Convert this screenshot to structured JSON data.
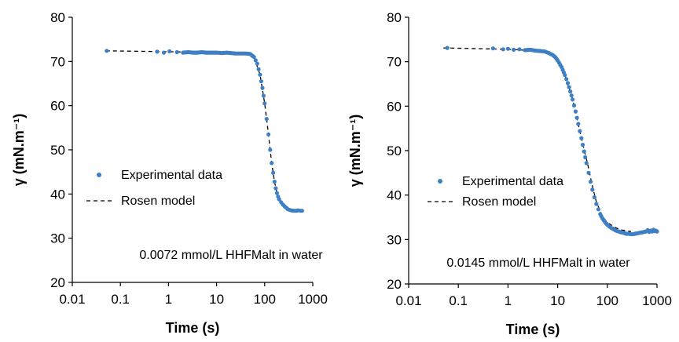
{
  "colors": {
    "data": "#3f7fc4",
    "model": "#000000",
    "axis": "#000000"
  },
  "chart_data": [
    {
      "type": "scatter",
      "x_scale": "log",
      "xlabel": "Time (s)",
      "ylabel": "γ (mN.m⁻¹)",
      "xlim": [
        0.01,
        1000
      ],
      "ylim": [
        20,
        80
      ],
      "x_ticks": [
        "0.01",
        "0.1",
        "1",
        "10",
        "100",
        "1000"
      ],
      "y_ticks": [
        "20",
        "30",
        "40",
        "50",
        "60",
        "70",
        "80"
      ],
      "grid": false,
      "legend_placement": "left-center",
      "legend": {
        "experimental": "Experimental data",
        "model": "Rosen model"
      },
      "annotation": "0.0072 mmol/L  HHFMalt  in water",
      "series": [
        {
          "name": "Experimental data",
          "kind": "markers",
          "x": [
            0.052,
            0.58,
            0.8,
            1.05,
            1.5,
            2.0,
            2.6,
            3.2,
            4.0,
            5.0,
            6.0,
            8.0,
            10,
            13,
            16,
            20,
            25,
            30,
            40,
            50,
            60,
            70,
            80,
            90,
            100,
            110,
            120,
            130,
            140,
            150,
            160,
            170,
            180,
            190,
            200,
            220,
            240,
            260,
            280,
            300,
            330,
            360,
            400,
            450,
            500,
            550,
            600
          ],
          "y": [
            72.4,
            72.2,
            72.0,
            72.3,
            72.1,
            72.0,
            72.1,
            72.0,
            72.0,
            72.1,
            72.0,
            72.0,
            72.0,
            71.9,
            72.0,
            71.9,
            71.8,
            71.8,
            71.8,
            71.7,
            71.0,
            69.5,
            67.0,
            64.0,
            60.5,
            57.0,
            53.5,
            50.0,
            47.0,
            44.8,
            42.8,
            41.3,
            40.2,
            39.4,
            38.8,
            38.1,
            37.6,
            37.2,
            36.9,
            36.6,
            36.4,
            36.3,
            36.2,
            36.2,
            36.3,
            36.2,
            36.2
          ]
        },
        {
          "name": "Rosen model",
          "kind": "dashed-line",
          "x": [
            0.05,
            1,
            10,
            40,
            60,
            80,
            100,
            120,
            140,
            160,
            180,
            200,
            250,
            300,
            400,
            600
          ],
          "y": [
            72.4,
            72.2,
            72.0,
            71.8,
            71.0,
            67.0,
            60.5,
            53.5,
            47.0,
            42.8,
            40.2,
            38.8,
            37.4,
            36.8,
            36.4,
            36.2
          ]
        }
      ]
    },
    {
      "type": "scatter",
      "x_scale": "log",
      "xlabel": "Time (s)",
      "ylabel": "γ (mN.m⁻¹)",
      "xlim": [
        0.01,
        1000
      ],
      "ylim": [
        20,
        80
      ],
      "x_ticks": [
        "0.01",
        "0.1",
        "1",
        "10",
        "100",
        "1000"
      ],
      "y_ticks": [
        "20",
        "30",
        "40",
        "50",
        "60",
        "70",
        "80"
      ],
      "grid": false,
      "legend_placement": "left-center",
      "legend": {
        "experimental": "Experimental data",
        "model": "Rosen model"
      },
      "annotation": "0.0145 mmol/L  HHFMalt  in water",
      "series": [
        {
          "name": "Experimental data",
          "kind": "markers",
          "x": [
            0.06,
            0.5,
            0.8,
            1.0,
            1.3,
            1.7,
            2.2,
            2.8,
            3.5,
            4.5,
            5.5,
            6.5,
            8,
            9,
            10,
            12,
            14,
            16,
            18,
            20,
            23,
            26,
            30,
            34,
            38,
            42,
            46,
            50,
            55,
            60,
            66,
            72,
            80,
            90,
            100,
            110,
            120,
            135,
            150,
            170,
            190,
            210,
            240,
            270,
            300,
            330,
            600,
            650,
            700,
            750,
            800,
            850,
            900,
            950,
            1000
          ],
          "y": [
            73.1,
            73.0,
            72.8,
            72.9,
            72.7,
            72.8,
            72.6,
            72.7,
            72.5,
            72.4,
            72.3,
            72.0,
            71.5,
            71.0,
            70.3,
            68.8,
            67.0,
            65.2,
            63.3,
            61.5,
            58.8,
            56.0,
            52.8,
            49.8,
            47.2,
            45.0,
            43.0,
            41.2,
            39.5,
            38.0,
            36.8,
            35.7,
            34.7,
            33.9,
            33.3,
            32.9,
            32.6,
            32.3,
            32.0,
            31.8,
            31.6,
            31.5,
            31.3,
            31.3,
            31.2,
            31.2,
            31.8,
            32.1,
            31.7,
            32.0,
            31.8,
            32.2,
            31.9,
            32.0,
            31.8
          ]
        },
        {
          "name": "Rosen model",
          "kind": "dashed-line",
          "x": [
            0.05,
            1,
            3,
            6,
            8,
            10,
            14,
            20,
            30,
            40,
            50,
            60,
            80,
            100,
            150,
            200,
            300
          ],
          "y": [
            73.1,
            72.8,
            72.5,
            72.1,
            71.5,
            70.3,
            67.0,
            61.5,
            52.8,
            47.0,
            42.0,
            38.5,
            35.2,
            33.8,
            32.6,
            32.1,
            31.8
          ]
        }
      ]
    }
  ]
}
